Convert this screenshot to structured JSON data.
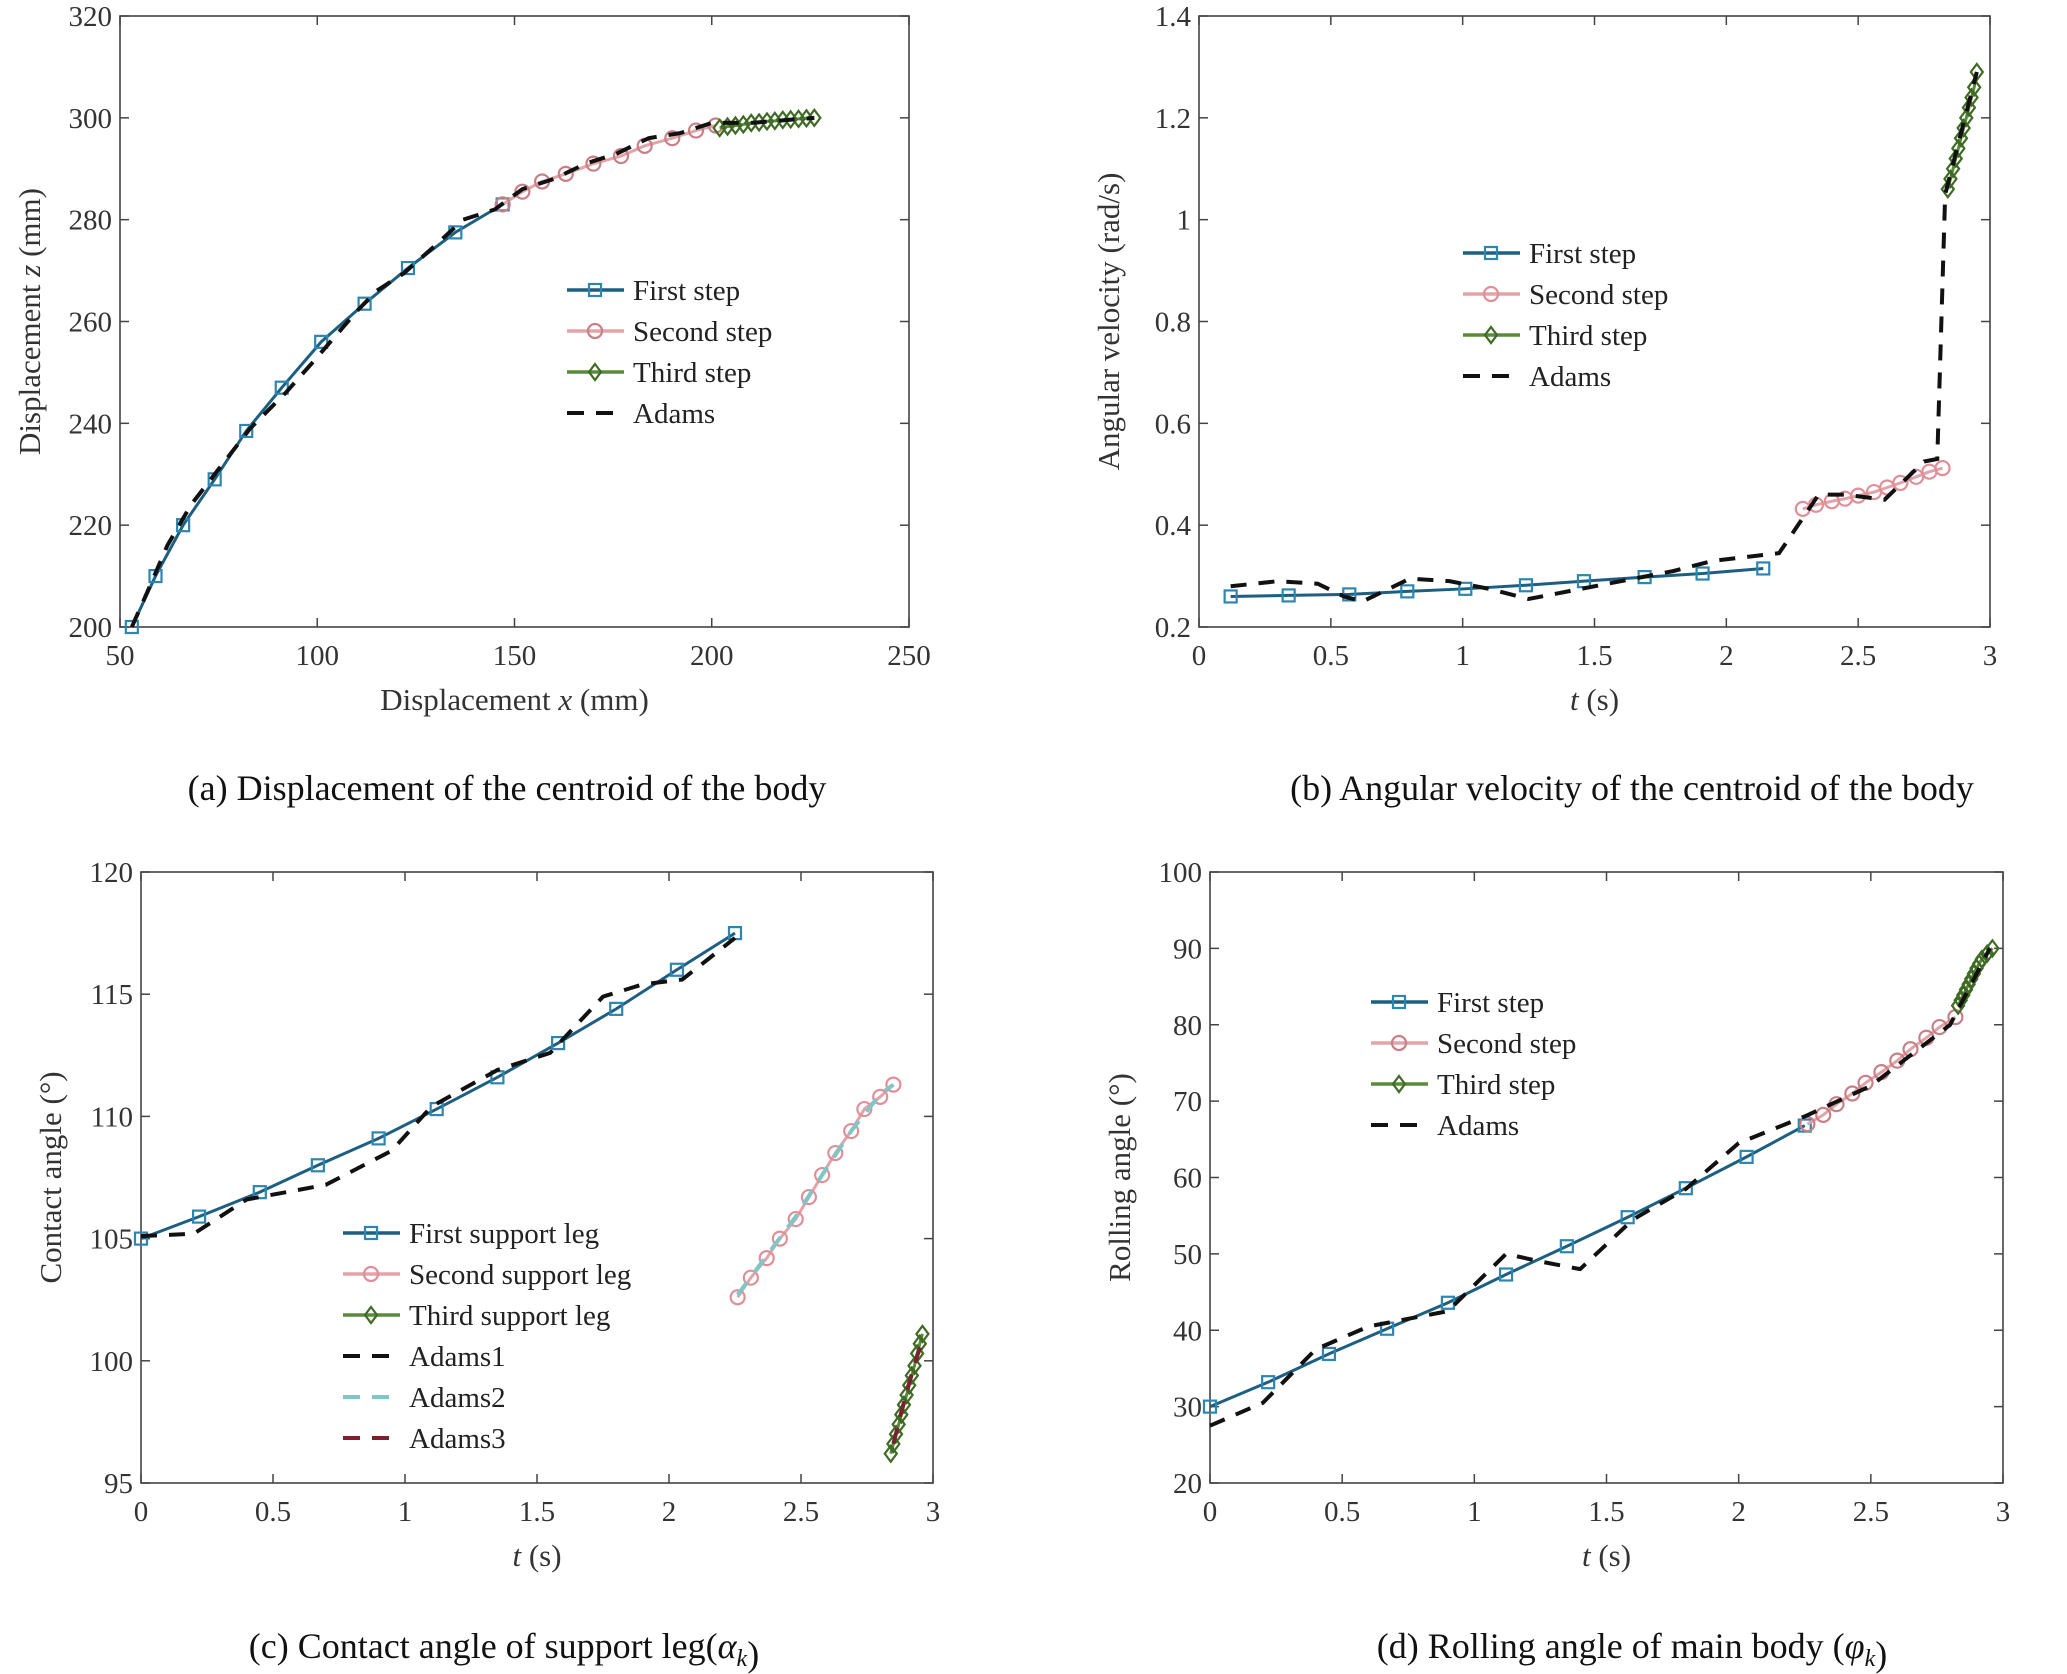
{
  "chart_data": [
    {
      "type": "line",
      "id": "a",
      "caption": {
        "pre": "(a) Displacement of the centroid of the body",
        "var": "",
        "sub": "",
        "post": ""
      },
      "xlabel": {
        "pre": "Displacement  ",
        "var": "x",
        "post": " (mm)"
      },
      "ylabel": {
        "pre": "Displacement  ",
        "var": "z",
        "post": " (mm)"
      },
      "xlim": [
        50,
        250
      ],
      "ylim": [
        200,
        320
      ],
      "xticks": [
        50,
        100,
        150,
        200,
        250
      ],
      "xtick_labels": [
        "50",
        "100",
        "150",
        "200",
        "250"
      ],
      "yticks": [
        200,
        220,
        240,
        260,
        280,
        300,
        320
      ],
      "ytick_labels": [
        "200",
        "220",
        "240",
        "260",
        "280",
        "300",
        "320"
      ],
      "legend_position": "center-right",
      "series": [
        {
          "name": "First step",
          "color": "#1d5f80",
          "marker_color": "#2e86b0",
          "marker": "square",
          "dashed": false,
          "x": [
            53,
            59,
            66,
            74,
            82,
            91,
            101,
            112,
            123,
            135,
            147
          ],
          "y": [
            200,
            210,
            220,
            229,
            238.5,
            247,
            256,
            263.5,
            270.5,
            277.5,
            283
          ]
        },
        {
          "name": "Second step",
          "color": "#e3a3a8",
          "marker_color": "#c97f86",
          "marker": "circle",
          "dashed": false,
          "x": [
            147,
            152,
            157,
            163,
            170,
            177,
            183,
            190,
            196,
            201
          ],
          "y": [
            283,
            285.5,
            287.5,
            289,
            291,
            292.5,
            294.5,
            296,
            297.5,
            298.5
          ]
        },
        {
          "name": "Third step",
          "color": "#5b8a3a",
          "marker_color": "#3f6b25",
          "marker": "diamond",
          "dashed": false,
          "x": [
            202,
            204,
            206,
            208,
            210,
            212,
            214,
            216,
            218,
            220,
            222,
            224,
            226
          ],
          "y": [
            298,
            298.3,
            298.5,
            298.7,
            299,
            299.1,
            299.3,
            299.4,
            299.6,
            299.7,
            299.8,
            299.9,
            300
          ]
        },
        {
          "name": "Adams",
          "color": "#111111",
          "marker": "none",
          "dashed": true,
          "x": [
            53,
            57,
            62,
            68,
            75,
            83,
            92,
            100,
            110,
            115,
            122,
            130,
            137,
            145,
            152,
            160,
            168,
            176,
            184,
            192,
            200,
            210,
            218,
            226
          ],
          "y": [
            200,
            207,
            216,
            224,
            231,
            239,
            246,
            253,
            262,
            266,
            269.5,
            275,
            280,
            282,
            286,
            288,
            291,
            293,
            296,
            297,
            299,
            299,
            299.5,
            300
          ]
        }
      ]
    },
    {
      "type": "line",
      "id": "b",
      "caption": {
        "pre": "(b) Angular velocity of the centroid of the body",
        "var": "",
        "sub": "",
        "post": ""
      },
      "xlabel": {
        "pre": "",
        "var": "t",
        "post": " (s)"
      },
      "ylabel": {
        "pre": "Angular velocity (rad/s)",
        "var": "",
        "post": ""
      },
      "xlim": [
        0,
        3
      ],
      "ylim": [
        0.2,
        1.4
      ],
      "xticks": [
        0,
        0.5,
        1,
        1.5,
        2,
        2.5,
        3
      ],
      "xtick_labels": [
        "0",
        "0.5",
        "1",
        "1.5",
        "2",
        "2.5",
        "3"
      ],
      "yticks": [
        0.2,
        0.4,
        0.6,
        0.8,
        1,
        1.2,
        1.4
      ],
      "ytick_labels": [
        "0.2",
        "0.4",
        "0.6",
        "0.8",
        "1",
        "1.2",
        "1.4"
      ],
      "legend_position": "center-left",
      "series": [
        {
          "name": "First step",
          "color": "#1d5f80",
          "marker_color": "#2e86b0",
          "marker": "square",
          "dashed": false,
          "x": [
            0.12,
            0.34,
            0.57,
            0.79,
            1.01,
            1.24,
            1.46,
            1.69,
            1.91,
            2.14
          ],
          "y": [
            0.26,
            0.262,
            0.264,
            0.27,
            0.275,
            0.282,
            0.29,
            0.298,
            0.305,
            0.315
          ]
        },
        {
          "name": "Second step",
          "color": "#e3a3a8",
          "marker_color": "#e08f98",
          "marker": "circle",
          "dashed": false,
          "x": [
            2.29,
            2.34,
            2.4,
            2.45,
            2.5,
            2.56,
            2.61,
            2.66,
            2.72,
            2.77,
            2.82
          ],
          "y": [
            0.432,
            0.44,
            0.447,
            0.452,
            0.458,
            0.465,
            0.474,
            0.483,
            0.495,
            0.505,
            0.512
          ]
        },
        {
          "name": "Third step",
          "color": "#5b8a3a",
          "marker_color": "#3f6b25",
          "marker": "diamond",
          "dashed": false,
          "x": [
            2.84,
            2.85,
            2.86,
            2.87,
            2.88,
            2.89,
            2.9,
            2.91,
            2.92,
            2.93,
            2.94,
            2.95
          ],
          "y": [
            1.06,
            1.08,
            1.1,
            1.12,
            1.14,
            1.16,
            1.18,
            1.2,
            1.22,
            1.24,
            1.26,
            1.29
          ]
        },
        {
          "name": "Adams",
          "color": "#111111",
          "marker": "none",
          "dashed": true,
          "x": [
            0.12,
            0.3,
            0.45,
            0.55,
            0.62,
            0.8,
            0.95,
            1.1,
            1.25,
            1.45,
            1.6,
            1.8,
            1.95,
            2.2,
            2.35,
            2.45,
            2.6,
            2.75,
            2.8,
            2.83,
            2.95
          ],
          "y": [
            0.28,
            0.29,
            0.285,
            0.26,
            0.25,
            0.295,
            0.29,
            0.275,
            0.255,
            0.275,
            0.29,
            0.31,
            0.33,
            0.345,
            0.46,
            0.46,
            0.45,
            0.525,
            0.53,
            1.05,
            1.29
          ]
        }
      ]
    },
    {
      "type": "line",
      "id": "c",
      "caption": {
        "pre": "(c) Contact angle of support leg(",
        "var": "α",
        "sub": "k",
        "post": ")"
      },
      "xlabel": {
        "pre": "",
        "var": "t",
        "post": " (s)"
      },
      "ylabel": {
        "pre": "Contact angle (°)",
        "var": "",
        "post": ""
      },
      "xlim": [
        0,
        3
      ],
      "ylim": [
        95,
        120
      ],
      "xticks": [
        0,
        0.5,
        1,
        1.5,
        2,
        2.5,
        3
      ],
      "xtick_labels": [
        "0",
        "0.5",
        "1",
        "1.5",
        "2",
        "2.5",
        "3"
      ],
      "yticks": [
        95,
        100,
        105,
        110,
        115,
        120
      ],
      "ytick_labels": [
        "95",
        "100",
        "105",
        "110",
        "115",
        "120"
      ],
      "legend_position": "bottom-center",
      "series": [
        {
          "name": "First support leg",
          "color": "#1d5f80",
          "marker_color": "#2e86b0",
          "marker": "square",
          "dashed": false,
          "x": [
            0,
            0.22,
            0.45,
            0.67,
            0.9,
            1.12,
            1.35,
            1.58,
            1.8,
            2.03,
            2.25
          ],
          "y": [
            105,
            105.9,
            106.9,
            108,
            109.1,
            110.3,
            111.6,
            113,
            114.4,
            116,
            117.5
          ]
        },
        {
          "name": "Second support leg",
          "color": "#e3a3a8",
          "marker_color": "#e08f98",
          "marker": "circle",
          "dashed": false,
          "x": [
            2.26,
            2.31,
            2.37,
            2.42,
            2.48,
            2.53,
            2.58,
            2.63,
            2.69,
            2.74,
            2.8,
            2.85
          ],
          "y": [
            102.6,
            103.4,
            104.2,
            105.0,
            105.8,
            106.7,
            107.6,
            108.5,
            109.4,
            110.3,
            110.8,
            111.3
          ]
        },
        {
          "name": "Third support leg",
          "color": "#5b8a3a",
          "marker_color": "#3f6b25",
          "marker": "diamond",
          "dashed": false,
          "x": [
            2.84,
            2.85,
            2.86,
            2.87,
            2.88,
            2.89,
            2.9,
            2.91,
            2.92,
            2.93,
            2.94,
            2.95,
            2.96
          ],
          "y": [
            96.2,
            96.6,
            97.0,
            97.4,
            97.8,
            98.2,
            98.6,
            99.0,
            99.4,
            99.8,
            100.3,
            100.7,
            101.1
          ]
        },
        {
          "name": "Adams1",
          "color": "#111111",
          "marker": "none",
          "dashed": true,
          "x": [
            0,
            0.2,
            0.4,
            0.7,
            0.95,
            1.1,
            1.35,
            1.55,
            1.75,
            1.9,
            2.05,
            2.25
          ],
          "y": [
            105.1,
            105.2,
            106.6,
            107.2,
            108.6,
            110.4,
            111.9,
            112.6,
            114.9,
            115.4,
            115.6,
            117.3
          ]
        },
        {
          "name": "Adams2",
          "color": "#7fc6c6",
          "marker": "none",
          "dashed": true,
          "x": [
            2.26,
            2.37,
            2.48,
            2.58,
            2.69,
            2.8,
            2.85
          ],
          "y": [
            102.7,
            104.3,
            105.9,
            107.6,
            109.4,
            110.9,
            111.3
          ]
        },
        {
          "name": "Adams3",
          "color": "#7a2030",
          "marker": "none",
          "dashed": true,
          "x": [
            2.85,
            2.88,
            2.91,
            2.94,
            2.96
          ],
          "y": [
            96.6,
            97.9,
            99.1,
            100.2,
            100.8
          ]
        }
      ]
    },
    {
      "type": "line",
      "id": "d",
      "caption": {
        "pre": "(d) Rolling angle of main body (",
        "var": "φ",
        "sub": "k",
        "post": ")"
      },
      "xlabel": {
        "pre": "",
        "var": "t",
        "post": " (s)"
      },
      "ylabel": {
        "pre": "Rolling angle (°)",
        "var": "",
        "post": ""
      },
      "xlim": [
        0,
        3
      ],
      "ylim": [
        20,
        100
      ],
      "xticks": [
        0,
        0.5,
        1,
        1.5,
        2,
        2.5,
        3
      ],
      "xtick_labels": [
        "0",
        "0.5",
        "1",
        "1.5",
        "2",
        "2.5",
        "3"
      ],
      "yticks": [
        20,
        30,
        40,
        50,
        60,
        70,
        80,
        90,
        100
      ],
      "ytick_labels": [
        "20",
        "30",
        "40",
        "50",
        "60",
        "70",
        "80",
        "90",
        "100"
      ],
      "legend_position": "top-left",
      "series": [
        {
          "name": "First step",
          "color": "#1d5f80",
          "marker_color": "#2e86b0",
          "marker": "square",
          "dashed": false,
          "x": [
            0,
            0.22,
            0.45,
            0.67,
            0.9,
            1.12,
            1.35,
            1.58,
            1.8,
            2.03,
            2.25
          ],
          "y": [
            30,
            33.2,
            36.9,
            40.2,
            43.6,
            47.3,
            51,
            54.8,
            58.6,
            62.7,
            66.8
          ]
        },
        {
          "name": "Second step",
          "color": "#e3a3a8",
          "marker_color": "#c97f86",
          "marker": "circle",
          "dashed": false,
          "x": [
            2.26,
            2.32,
            2.37,
            2.43,
            2.48,
            2.54,
            2.6,
            2.65,
            2.71,
            2.76,
            2.82
          ],
          "y": [
            67,
            68.2,
            69.6,
            71,
            72.4,
            73.8,
            75.3,
            76.8,
            78.3,
            79.7,
            81
          ]
        },
        {
          "name": "Third step",
          "color": "#5b8a3a",
          "marker_color": "#3f6b25",
          "marker": "diamond",
          "dashed": false,
          "x": [
            2.83,
            2.84,
            2.85,
            2.86,
            2.87,
            2.88,
            2.89,
            2.9,
            2.91,
            2.92,
            2.94,
            2.96
          ],
          "y": [
            82.5,
            83.2,
            83.9,
            84.6,
            85.3,
            86,
            86.7,
            87.4,
            88,
            88.6,
            89.3,
            90
          ]
        },
        {
          "name": "Adams",
          "color": "#111111",
          "marker": "none",
          "dashed": true,
          "x": [
            0,
            0.2,
            0.4,
            0.6,
            0.9,
            1.12,
            1.25,
            1.4,
            1.6,
            1.8,
            2.0,
            2.25,
            2.5,
            2.8,
            2.95
          ],
          "y": [
            27.5,
            30.5,
            37.5,
            40.5,
            42.5,
            50,
            49,
            48,
            54.5,
            58.5,
            64.5,
            68,
            72,
            80,
            90
          ]
        }
      ]
    }
  ]
}
